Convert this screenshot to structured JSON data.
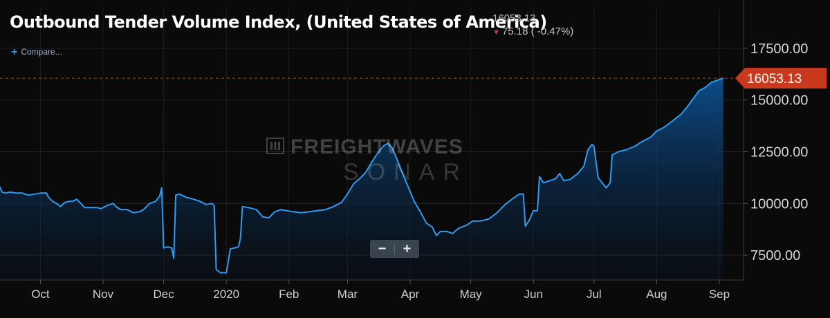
{
  "header": {
    "title": "Outbound Tender Volume Index, (United States of America)",
    "last_value": "16053.13",
    "change": "75.18 ( -0.47%)",
    "change_direction": "down"
  },
  "compare_label": "Compare...",
  "zoom": {
    "minus": "−",
    "plus": "+"
  },
  "watermark": {
    "line1": "FREIGHTWAVES",
    "line2": "SONAR"
  },
  "last_price_tag": "16053.13",
  "colors": {
    "background": "#0a0a0a",
    "line": "#2e9bf0",
    "area_top": "#0d4f8f",
    "price_tag": "#c8391e",
    "last_price_line": "#d0322a",
    "down_arrow": "#e0332b"
  },
  "chart_data": {
    "type": "area",
    "title": "Outbound Tender Volume Index, (United States of America)",
    "xlabel": "",
    "ylabel": "",
    "ylim": [
      6300,
      19500
    ],
    "y_ticks": [
      7500,
      10000,
      12500,
      15000,
      17500
    ],
    "y_tick_labels": [
      "7500.00",
      "10000.00",
      "12500.00",
      "15000.00",
      "17500.00"
    ],
    "x_ticks": [
      {
        "label": "Oct",
        "date": "2019-10-01"
      },
      {
        "label": "Nov",
        "date": "2019-11-01"
      },
      {
        "label": "Dec",
        "date": "2019-12-01"
      },
      {
        "label": "2020",
        "date": "2020-01-01"
      },
      {
        "label": "Feb",
        "date": "2020-02-01"
      },
      {
        "label": "Mar",
        "date": "2020-03-01"
      },
      {
        "label": "Apr",
        "date": "2020-04-01"
      },
      {
        "label": "May",
        "date": "2020-05-01"
      },
      {
        "label": "Jun",
        "date": "2020-06-01"
      },
      {
        "label": "Jul",
        "date": "2020-07-01"
      },
      {
        "label": "Aug",
        "date": "2020-08-01"
      },
      {
        "label": "Sep",
        "date": "2020-09-01"
      }
    ],
    "grid": true,
    "last_value": 16053.13,
    "series": [
      {
        "points": [
          [
            "2019-09-11",
            10800
          ],
          [
            "2019-09-12",
            10550
          ],
          [
            "2019-09-14",
            10500
          ],
          [
            "2019-09-16",
            10550
          ],
          [
            "2019-09-19",
            10500
          ],
          [
            "2019-09-22",
            10500
          ],
          [
            "2019-09-25",
            10400
          ],
          [
            "2019-09-28",
            10450
          ],
          [
            "2019-10-01",
            10500
          ],
          [
            "2019-10-04",
            10500
          ],
          [
            "2019-10-05",
            10300
          ],
          [
            "2019-10-07",
            10100
          ],
          [
            "2019-10-09",
            10000
          ],
          [
            "2019-10-11",
            9850
          ],
          [
            "2019-10-13",
            10050
          ],
          [
            "2019-10-15",
            10100
          ],
          [
            "2019-10-17",
            10100
          ],
          [
            "2019-10-19",
            10200
          ],
          [
            "2019-10-21",
            10000
          ],
          [
            "2019-10-23",
            9800
          ],
          [
            "2019-10-26",
            9800
          ],
          [
            "2019-10-29",
            9800
          ],
          [
            "2019-10-31",
            9750
          ],
          [
            "2019-11-03",
            9900
          ],
          [
            "2019-11-06",
            10000
          ],
          [
            "2019-11-08",
            9800
          ],
          [
            "2019-11-10",
            9700
          ],
          [
            "2019-11-13",
            9700
          ],
          [
            "2019-11-16",
            9550
          ],
          [
            "2019-11-19",
            9600
          ],
          [
            "2019-11-21",
            9700
          ],
          [
            "2019-11-24",
            10000
          ],
          [
            "2019-11-27",
            10100
          ],
          [
            "2019-11-29",
            10350
          ],
          [
            "2019-11-30",
            10750
          ],
          [
            "2019-12-01",
            7850
          ],
          [
            "2019-12-03",
            7900
          ],
          [
            "2019-12-05",
            7850
          ],
          [
            "2019-12-06",
            7350
          ],
          [
            "2019-12-07",
            10400
          ],
          [
            "2019-12-09",
            10450
          ],
          [
            "2019-12-12",
            10300
          ],
          [
            "2019-12-16",
            10200
          ],
          [
            "2019-12-19",
            10100
          ],
          [
            "2019-12-22",
            9950
          ],
          [
            "2019-12-25",
            10000
          ],
          [
            "2019-12-26",
            9900
          ],
          [
            "2019-12-27",
            6800
          ],
          [
            "2019-12-29",
            6650
          ],
          [
            "2020-01-01",
            6650
          ],
          [
            "2020-01-03",
            7800
          ],
          [
            "2020-01-05",
            7850
          ],
          [
            "2020-01-07",
            7900
          ],
          [
            "2020-01-08",
            8300
          ],
          [
            "2020-01-09",
            9850
          ],
          [
            "2020-01-12",
            9800
          ],
          [
            "2020-01-16",
            9700
          ],
          [
            "2020-01-19",
            9350
          ],
          [
            "2020-01-22",
            9300
          ],
          [
            "2020-01-25",
            9600
          ],
          [
            "2020-01-28",
            9700
          ],
          [
            "2020-01-31",
            9650
          ],
          [
            "2020-02-03",
            9600
          ],
          [
            "2020-02-07",
            9550
          ],
          [
            "2020-02-11",
            9600
          ],
          [
            "2020-02-15",
            9650
          ],
          [
            "2020-02-19",
            9700
          ],
          [
            "2020-02-23",
            9850
          ],
          [
            "2020-02-27",
            10050
          ],
          [
            "2020-03-01",
            10450
          ],
          [
            "2020-03-04",
            10950
          ],
          [
            "2020-03-07",
            11200
          ],
          [
            "2020-03-10",
            11500
          ],
          [
            "2020-03-13",
            12000
          ],
          [
            "2020-03-16",
            12450
          ],
          [
            "2020-03-19",
            12800
          ],
          [
            "2020-03-21",
            12900
          ],
          [
            "2020-03-23",
            12700
          ],
          [
            "2020-03-25",
            12250
          ],
          [
            "2020-03-28",
            11500
          ],
          [
            "2020-03-31",
            10800
          ],
          [
            "2020-04-03",
            10100
          ],
          [
            "2020-04-06",
            9600
          ],
          [
            "2020-04-09",
            9050
          ],
          [
            "2020-04-12",
            8850
          ],
          [
            "2020-04-14",
            8450
          ],
          [
            "2020-04-16",
            8650
          ],
          [
            "2020-04-19",
            8650
          ],
          [
            "2020-04-22",
            8550
          ],
          [
            "2020-04-25",
            8800
          ],
          [
            "2020-04-29",
            8950
          ],
          [
            "2020-05-02",
            9150
          ],
          [
            "2020-05-06",
            9150
          ],
          [
            "2020-05-10",
            9250
          ],
          [
            "2020-05-14",
            9550
          ],
          [
            "2020-05-18",
            9950
          ],
          [
            "2020-05-22",
            10250
          ],
          [
            "2020-05-25",
            10450
          ],
          [
            "2020-05-27",
            10450
          ],
          [
            "2020-05-28",
            8900
          ],
          [
            "2020-05-30",
            9200
          ],
          [
            "2020-06-01",
            9650
          ],
          [
            "2020-06-03",
            9650
          ],
          [
            "2020-06-04",
            11300
          ],
          [
            "2020-06-06",
            11000
          ],
          [
            "2020-06-09",
            11100
          ],
          [
            "2020-06-12",
            11200
          ],
          [
            "2020-06-14",
            11450
          ],
          [
            "2020-06-16",
            11100
          ],
          [
            "2020-06-19",
            11150
          ],
          [
            "2020-06-23",
            11450
          ],
          [
            "2020-06-26",
            11800
          ],
          [
            "2020-06-28",
            12600
          ],
          [
            "2020-06-30",
            12850
          ],
          [
            "2020-07-01",
            12750
          ],
          [
            "2020-07-03",
            11250
          ],
          [
            "2020-07-05",
            11000
          ],
          [
            "2020-07-07",
            10750
          ],
          [
            "2020-07-09",
            11000
          ],
          [
            "2020-07-10",
            12350
          ],
          [
            "2020-07-13",
            12500
          ],
          [
            "2020-07-17",
            12600
          ],
          [
            "2020-07-21",
            12750
          ],
          [
            "2020-07-25",
            13000
          ],
          [
            "2020-07-29",
            13200
          ],
          [
            "2020-08-01",
            13500
          ],
          [
            "2020-08-05",
            13700
          ],
          [
            "2020-08-09",
            14000
          ],
          [
            "2020-08-13",
            14300
          ],
          [
            "2020-08-16",
            14650
          ],
          [
            "2020-08-19",
            15050
          ],
          [
            "2020-08-22",
            15450
          ],
          [
            "2020-08-25",
            15600
          ],
          [
            "2020-08-28",
            15850
          ],
          [
            "2020-08-31",
            15950
          ],
          [
            "2020-09-03",
            16053.13
          ]
        ]
      }
    ]
  }
}
